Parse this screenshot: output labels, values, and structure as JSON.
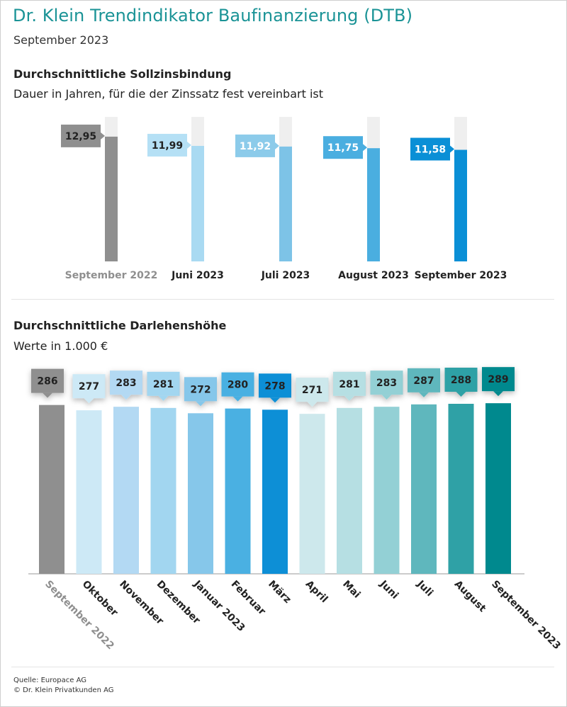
{
  "header": {
    "title": "Dr. Klein Trendindikator Baufinanzierung (DTB)",
    "subtitle": "September 2023"
  },
  "colors": {
    "title": "#1a9396",
    "track": "#efefef",
    "baseline": "#9a9a9a"
  },
  "chart_data": [
    {
      "type": "bar",
      "title": "Durchschnittliche Sollzinsbindung",
      "subtitle": "Dauer in Jahren, für die der Zinssatz fest vereinbart ist",
      "categories": [
        "September 2022",
        "Juni 2023",
        "Juli 2023",
        "August 2023",
        "September 2023"
      ],
      "values": [
        12.95,
        11.99,
        11.92,
        11.75,
        11.58
      ],
      "labels": [
        "12,95",
        "11,99",
        "11,92",
        "11,75",
        "11,58"
      ],
      "ylim": [
        0,
        15
      ],
      "bar_colors": [
        "#8f8f8f",
        "#a9daf2",
        "#7dc3e7",
        "#4aaee0",
        "#0a8fd6"
      ],
      "label_bg": [
        "#8f8f8f",
        "#b5e0f5",
        "#8ccbea",
        "#4aaee0",
        "#0a8fd6"
      ],
      "label_text_colors": [
        "#222222",
        "#222222",
        "#ffffff",
        "#ffffff",
        "#ffffff"
      ],
      "category_colors": [
        "#8f8f8f",
        "#222222",
        "#222222",
        "#222222",
        "#222222"
      ]
    },
    {
      "type": "bar",
      "title": "Durchschnittliche Darlehenshöhe",
      "subtitle": "Werte in 1.000 €",
      "categories": [
        "September 2022",
        "Oktober",
        "November",
        "Dezember",
        "Januar 2023",
        "Februar",
        "März",
        "April",
        "Mai",
        "Juni",
        "Juli",
        "August",
        "September 2023"
      ],
      "values": [
        286,
        277,
        283,
        281,
        272,
        280,
        278,
        271,
        281,
        283,
        287,
        288,
        289
      ],
      "ylim": [
        0,
        360
      ],
      "bar_colors": [
        "#8f8f8f",
        "#cde9f6",
        "#b3d9f3",
        "#a2d6f0",
        "#86c7ea",
        "#4ab0e2",
        "#0d8fd6",
        "#cde8ec",
        "#b6dfe3",
        "#93d0d5",
        "#5fb7bd",
        "#2fa1a6",
        "#00898e"
      ],
      "label_bg": [
        "#8f8f8f",
        "#cde9f6",
        "#b3d9f3",
        "#a2d6f0",
        "#86c7ea",
        "#4ab0e2",
        "#0d8fd6",
        "#cde8ec",
        "#b6dfe3",
        "#93d0d5",
        "#5fb7bd",
        "#2fa1a6",
        "#00898e"
      ],
      "category_colors": [
        "#8f8f8f",
        "#222222",
        "#222222",
        "#222222",
        "#222222",
        "#222222",
        "#222222",
        "#222222",
        "#222222",
        "#222222",
        "#222222",
        "#222222",
        "#222222"
      ]
    }
  ],
  "footer": {
    "source": "Quelle: Europace AG",
    "copyright": "© Dr. Klein Privatkunden AG"
  }
}
